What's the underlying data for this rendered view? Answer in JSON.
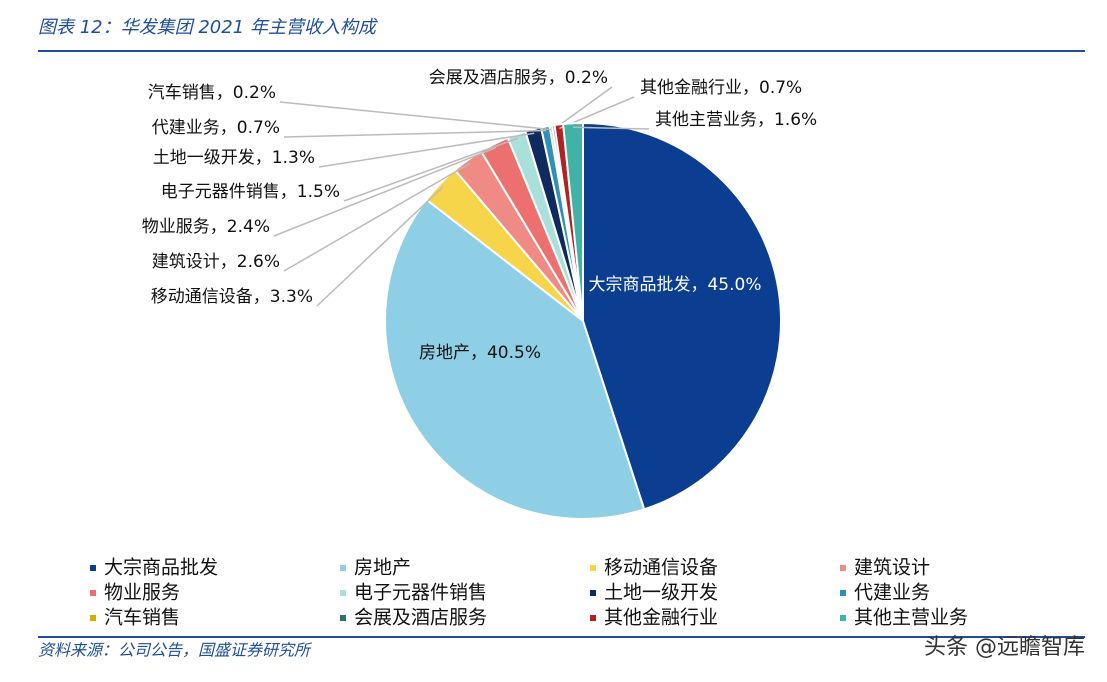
{
  "chart_data": {
    "type": "pie",
    "title": "图表 12：华发集团 2021 年主营收入构成",
    "source": "资料来源：公司公告，国盛证券研究所",
    "watermark": "头条 @远瞻智库",
    "categories": [
      "大宗商品批发",
      "房地产",
      "移动通信设备",
      "建筑设计",
      "物业服务",
      "电子元器件销售",
      "土地一级开发",
      "代建业务",
      "汽车销售",
      "会展及酒店服务",
      "其他金融行业",
      "其他主营业务"
    ],
    "values": [
      45.0,
      40.5,
      3.3,
      2.6,
      2.4,
      1.5,
      1.3,
      0.7,
      0.2,
      0.2,
      0.7,
      1.6
    ],
    "value_labels": [
      "大宗商品批发，45.0%",
      "房地产，40.5%",
      "移动通信设备，3.3%",
      "建筑设计，2.6%",
      "物业服务，2.4%",
      "电子元器件销售，1.5%",
      "土地一级开发，1.3%",
      "代建业务，0.7%",
      "汽车销售，0.2%",
      "会展及酒店服务，0.2%",
      "其他金融行业，0.7%",
      "其他主营业务，1.6%"
    ],
    "colors": [
      "#0b3d91",
      "#8fcfe6",
      "#f6d54a",
      "#f08a84",
      "#ec7070",
      "#a9e0dc",
      "#0e2a5e",
      "#2e8fb8",
      "#d4ae00",
      "#2f6f6f",
      "#b22222",
      "#40b3a6"
    ]
  }
}
